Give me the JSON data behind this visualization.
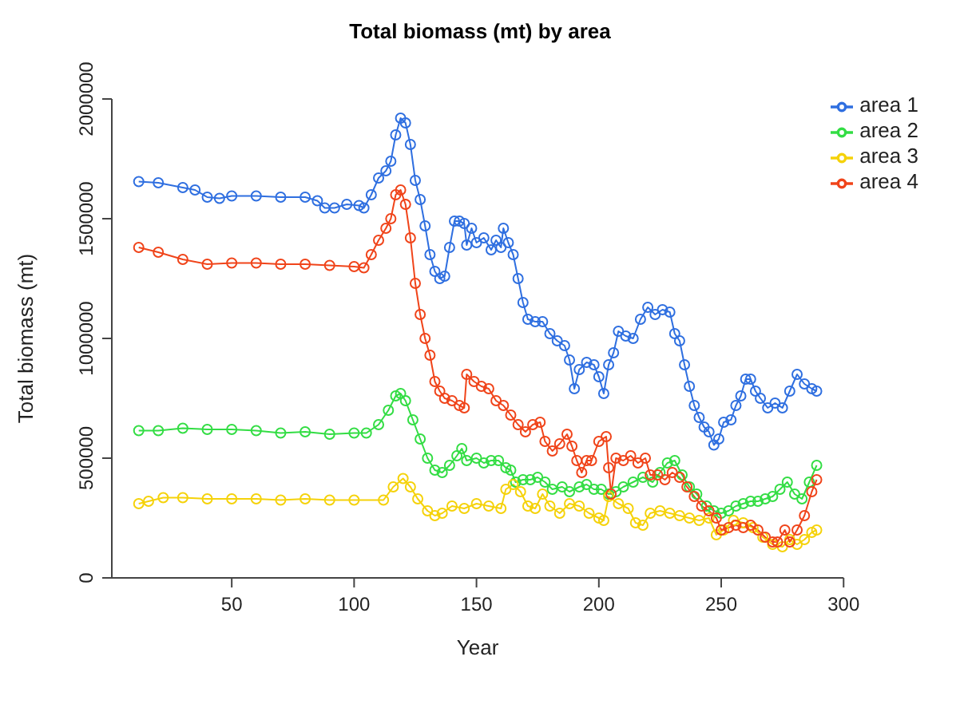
{
  "chart_data": {
    "type": "line",
    "title": "Total biomass (mt) by area",
    "xlabel": "Year",
    "ylabel": "Total biomass (mt)",
    "xlim": [
      1,
      300
    ],
    "xticks": [
      50,
      100,
      150,
      200,
      250,
      300
    ],
    "ylim": [
      0,
      2000000
    ],
    "yticks": [
      0,
      500000,
      1000000,
      1500000,
      2000000
    ],
    "legend": "top right",
    "marker": "circle",
    "line_style": "solid",
    "series": [
      {
        "name": "area 1",
        "color": "#2f6fe0",
        "x": [
          12,
          20,
          30,
          35,
          40,
          45,
          50,
          60,
          70,
          80,
          85,
          88,
          92,
          97,
          102,
          104,
          107,
          110,
          113,
          115,
          117,
          119,
          121,
          123,
          125,
          127,
          129,
          131,
          133,
          135,
          137,
          139,
          141,
          143,
          145,
          146,
          148,
          150,
          153,
          156,
          158,
          160,
          161,
          163,
          165,
          167,
          169,
          171,
          174,
          177,
          180,
          183,
          186,
          188,
          190,
          192,
          195,
          198,
          200,
          202,
          204,
          206,
          208,
          211,
          214,
          217,
          220,
          223,
          226,
          229,
          231,
          233,
          235,
          237,
          239,
          241,
          243,
          245,
          247,
          249,
          251,
          254,
          256,
          258,
          260,
          262,
          264,
          266,
          269,
          272,
          275,
          278,
          281,
          284,
          287,
          289
        ],
        "values": [
          1655000,
          1650000,
          1630000,
          1620000,
          1590000,
          1585000,
          1595000,
          1595000,
          1590000,
          1590000,
          1575000,
          1545000,
          1545000,
          1560000,
          1555000,
          1545000,
          1600000,
          1670000,
          1700000,
          1740000,
          1850000,
          1920000,
          1900000,
          1810000,
          1660000,
          1580000,
          1470000,
          1350000,
          1280000,
          1250000,
          1260000,
          1380000,
          1490000,
          1490000,
          1480000,
          1390000,
          1460000,
          1400000,
          1420000,
          1370000,
          1410000,
          1380000,
          1460000,
          1400000,
          1350000,
          1250000,
          1150000,
          1080000,
          1070000,
          1070000,
          1020000,
          990000,
          970000,
          910000,
          790000,
          870000,
          900000,
          890000,
          840000,
          770000,
          890000,
          940000,
          1030000,
          1010000,
          1000000,
          1080000,
          1130000,
          1100000,
          1120000,
          1110000,
          1020000,
          990000,
          890000,
          800000,
          720000,
          670000,
          630000,
          610000,
          555000,
          580000,
          650000,
          660000,
          720000,
          760000,
          830000,
          830000,
          780000,
          750000,
          710000,
          730000,
          710000,
          780000,
          850000,
          810000,
          790000,
          780000
        ]
      },
      {
        "name": "area 2",
        "color": "#33dd44",
        "x": [
          12,
          20,
          30,
          40,
          50,
          60,
          70,
          80,
          90,
          100,
          105,
          110,
          114,
          117,
          119,
          121,
          124,
          127,
          130,
          133,
          136,
          139,
          142,
          144,
          146,
          150,
          153,
          156,
          159,
          162,
          164,
          166,
          169,
          172,
          175,
          178,
          181,
          185,
          188,
          192,
          195,
          198,
          201,
          204,
          207,
          210,
          214,
          218,
          222,
          225,
          228,
          231,
          234,
          237,
          240,
          244,
          247,
          250,
          253,
          256,
          259,
          262,
          265,
          268,
          271,
          274,
          277,
          280,
          283,
          286,
          289
        ],
        "values": [
          615000,
          615000,
          625000,
          620000,
          620000,
          615000,
          605000,
          610000,
          600000,
          605000,
          605000,
          640000,
          700000,
          760000,
          770000,
          740000,
          660000,
          580000,
          500000,
          450000,
          440000,
          470000,
          510000,
          540000,
          490000,
          500000,
          480000,
          490000,
          490000,
          460000,
          450000,
          400000,
          410000,
          410000,
          420000,
          400000,
          370000,
          380000,
          360000,
          380000,
          390000,
          370000,
          370000,
          350000,
          360000,
          380000,
          400000,
          420000,
          400000,
          440000,
          480000,
          490000,
          430000,
          380000,
          350000,
          300000,
          280000,
          270000,
          280000,
          300000,
          310000,
          320000,
          320000,
          330000,
          340000,
          370000,
          400000,
          350000,
          330000,
          400000,
          470000
        ]
      },
      {
        "name": "area 3",
        "color": "#f5d20a",
        "x": [
          12,
          16,
          22,
          30,
          40,
          50,
          60,
          70,
          80,
          90,
          100,
          112,
          116,
          120,
          123,
          126,
          130,
          133,
          136,
          140,
          145,
          150,
          155,
          160,
          162,
          165,
          168,
          171,
          174,
          177,
          180,
          184,
          188,
          192,
          196,
          200,
          202,
          204,
          208,
          212,
          215,
          218,
          221,
          225,
          229,
          233,
          237,
          241,
          245,
          248,
          251,
          255,
          259,
          263,
          267,
          271,
          275,
          278,
          281,
          284,
          287,
          289
        ],
        "values": [
          310000,
          320000,
          335000,
          335000,
          330000,
          330000,
          330000,
          325000,
          330000,
          325000,
          325000,
          325000,
          380000,
          415000,
          380000,
          330000,
          280000,
          260000,
          270000,
          300000,
          290000,
          310000,
          300000,
          290000,
          370000,
          390000,
          360000,
          300000,
          290000,
          350000,
          300000,
          270000,
          310000,
          300000,
          270000,
          250000,
          240000,
          340000,
          310000,
          290000,
          230000,
          220000,
          270000,
          280000,
          270000,
          260000,
          250000,
          240000,
          250000,
          180000,
          200000,
          240000,
          230000,
          210000,
          170000,
          140000,
          130000,
          160000,
          140000,
          160000,
          190000,
          200000
        ]
      },
      {
        "name": "area 4",
        "color": "#f0441a",
        "x": [
          12,
          20,
          30,
          40,
          50,
          60,
          70,
          80,
          90,
          100,
          104,
          107,
          110,
          113,
          115,
          117,
          119,
          121,
          123,
          125,
          127,
          129,
          131,
          133,
          135,
          137,
          140,
          143,
          145,
          146,
          149,
          152,
          155,
          158,
          161,
          164,
          167,
          170,
          173,
          176,
          178,
          181,
          184,
          187,
          189,
          191,
          193,
          195,
          197,
          200,
          203,
          204,
          205,
          207,
          210,
          213,
          216,
          219,
          221,
          224,
          227,
          230,
          233,
          236,
          239,
          242,
          245,
          248,
          250,
          253,
          256,
          259,
          262,
          265,
          268,
          271,
          273,
          276,
          278,
          281,
          284,
          287,
          289
        ],
        "values": [
          1380000,
          1360000,
          1330000,
          1310000,
          1315000,
          1315000,
          1310000,
          1310000,
          1305000,
          1300000,
          1295000,
          1350000,
          1410000,
          1460000,
          1500000,
          1600000,
          1620000,
          1560000,
          1420000,
          1230000,
          1100000,
          1000000,
          930000,
          820000,
          780000,
          750000,
          740000,
          720000,
          710000,
          850000,
          820000,
          800000,
          790000,
          740000,
          720000,
          680000,
          640000,
          610000,
          640000,
          650000,
          570000,
          530000,
          560000,
          600000,
          550000,
          490000,
          440000,
          490000,
          490000,
          570000,
          590000,
          460000,
          350000,
          500000,
          490000,
          510000,
          480000,
          500000,
          430000,
          430000,
          410000,
          440000,
          420000,
          380000,
          340000,
          300000,
          280000,
          250000,
          200000,
          210000,
          220000,
          210000,
          220000,
          200000,
          170000,
          150000,
          150000,
          200000,
          150000,
          200000,
          260000,
          360000,
          410000
        ]
      }
    ]
  }
}
